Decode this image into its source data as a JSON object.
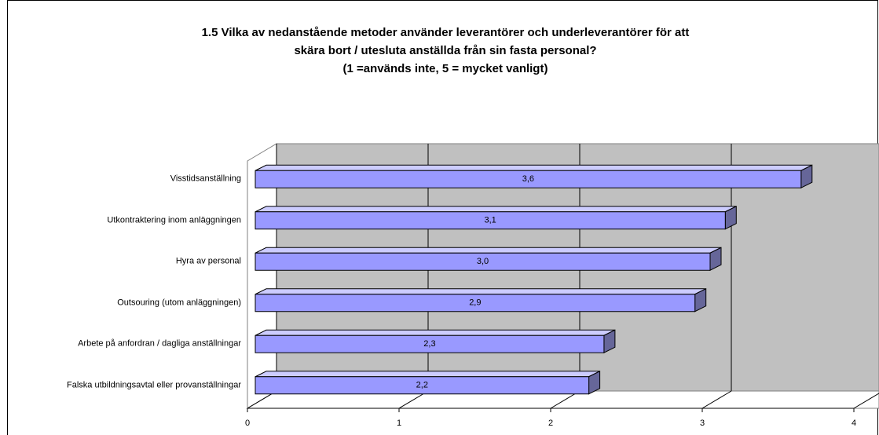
{
  "chart_data": {
    "type": "bar",
    "orientation": "horizontal",
    "three_d": true,
    "title": [
      "1.5 Vilka av nedanstående metoder använder leverantörer och underleverantörer för att",
      "skära bort / utesluta anställda från sin fasta personal?"
    ],
    "subtitle": "(1 =används inte, 5 = mycket vanligt)",
    "categories": [
      "Visstidsanställning",
      "Utkontraktering inom anläggningen",
      "Hyra av personal",
      "Outsouring (utom anläggningen)",
      "Arbete på anfordran / dagliga anställningar",
      "Falska utbildningsavtal eller provanställningar"
    ],
    "values": [
      3.6,
      3.1,
      3.0,
      2.9,
      2.3,
      2.2
    ],
    "value_labels": [
      "3,6",
      "3,1",
      "3,0",
      "2,9",
      "2,3",
      "2,2"
    ],
    "color": "#9999ff",
    "xlim": [
      0,
      4
    ],
    "xticks": [
      0,
      1,
      2,
      3,
      4
    ],
    "grid": true
  }
}
